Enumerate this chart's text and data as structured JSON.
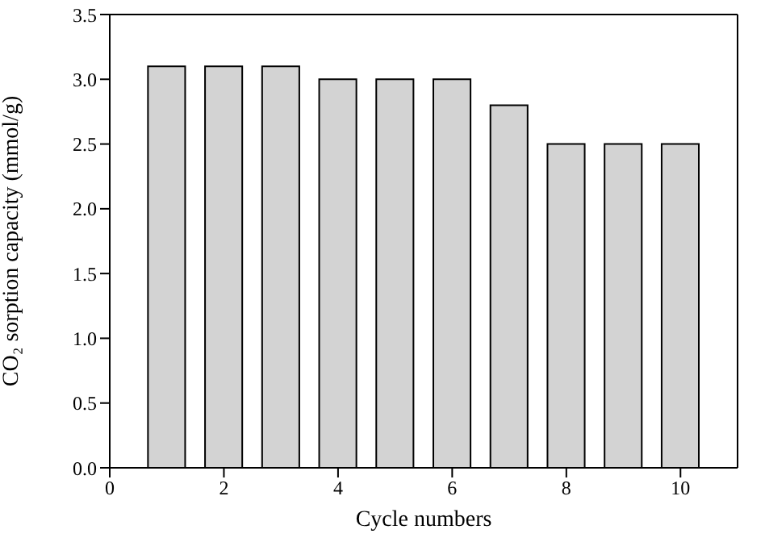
{
  "chart_data": {
    "type": "bar",
    "xlabel": "Cycle numbers",
    "ylabel": "CO₂ sorption capacity (mmol/g)",
    "x": [
      1,
      2,
      3,
      4,
      5,
      6,
      7,
      8,
      9,
      10
    ],
    "values": [
      3.1,
      3.1,
      3.1,
      3.0,
      3.0,
      3.0,
      2.8,
      2.5,
      2.5,
      2.5
    ],
    "color": "#d3d3d3",
    "xlim": [
      0,
      11
    ],
    "xticks": [
      0,
      2,
      4,
      6,
      8,
      10
    ],
    "ylim": [
      0,
      3.5
    ],
    "yticks": [
      {
        "value": 0,
        "label": "0.0"
      },
      0.5,
      {
        "value": 1,
        "label": "1.0"
      },
      1.5,
      {
        "value": 2,
        "label": "2.0"
      },
      2.5,
      {
        "value": 3,
        "label": "3.0"
      },
      3.5
    ],
    "grid": false,
    "legend": false
  }
}
